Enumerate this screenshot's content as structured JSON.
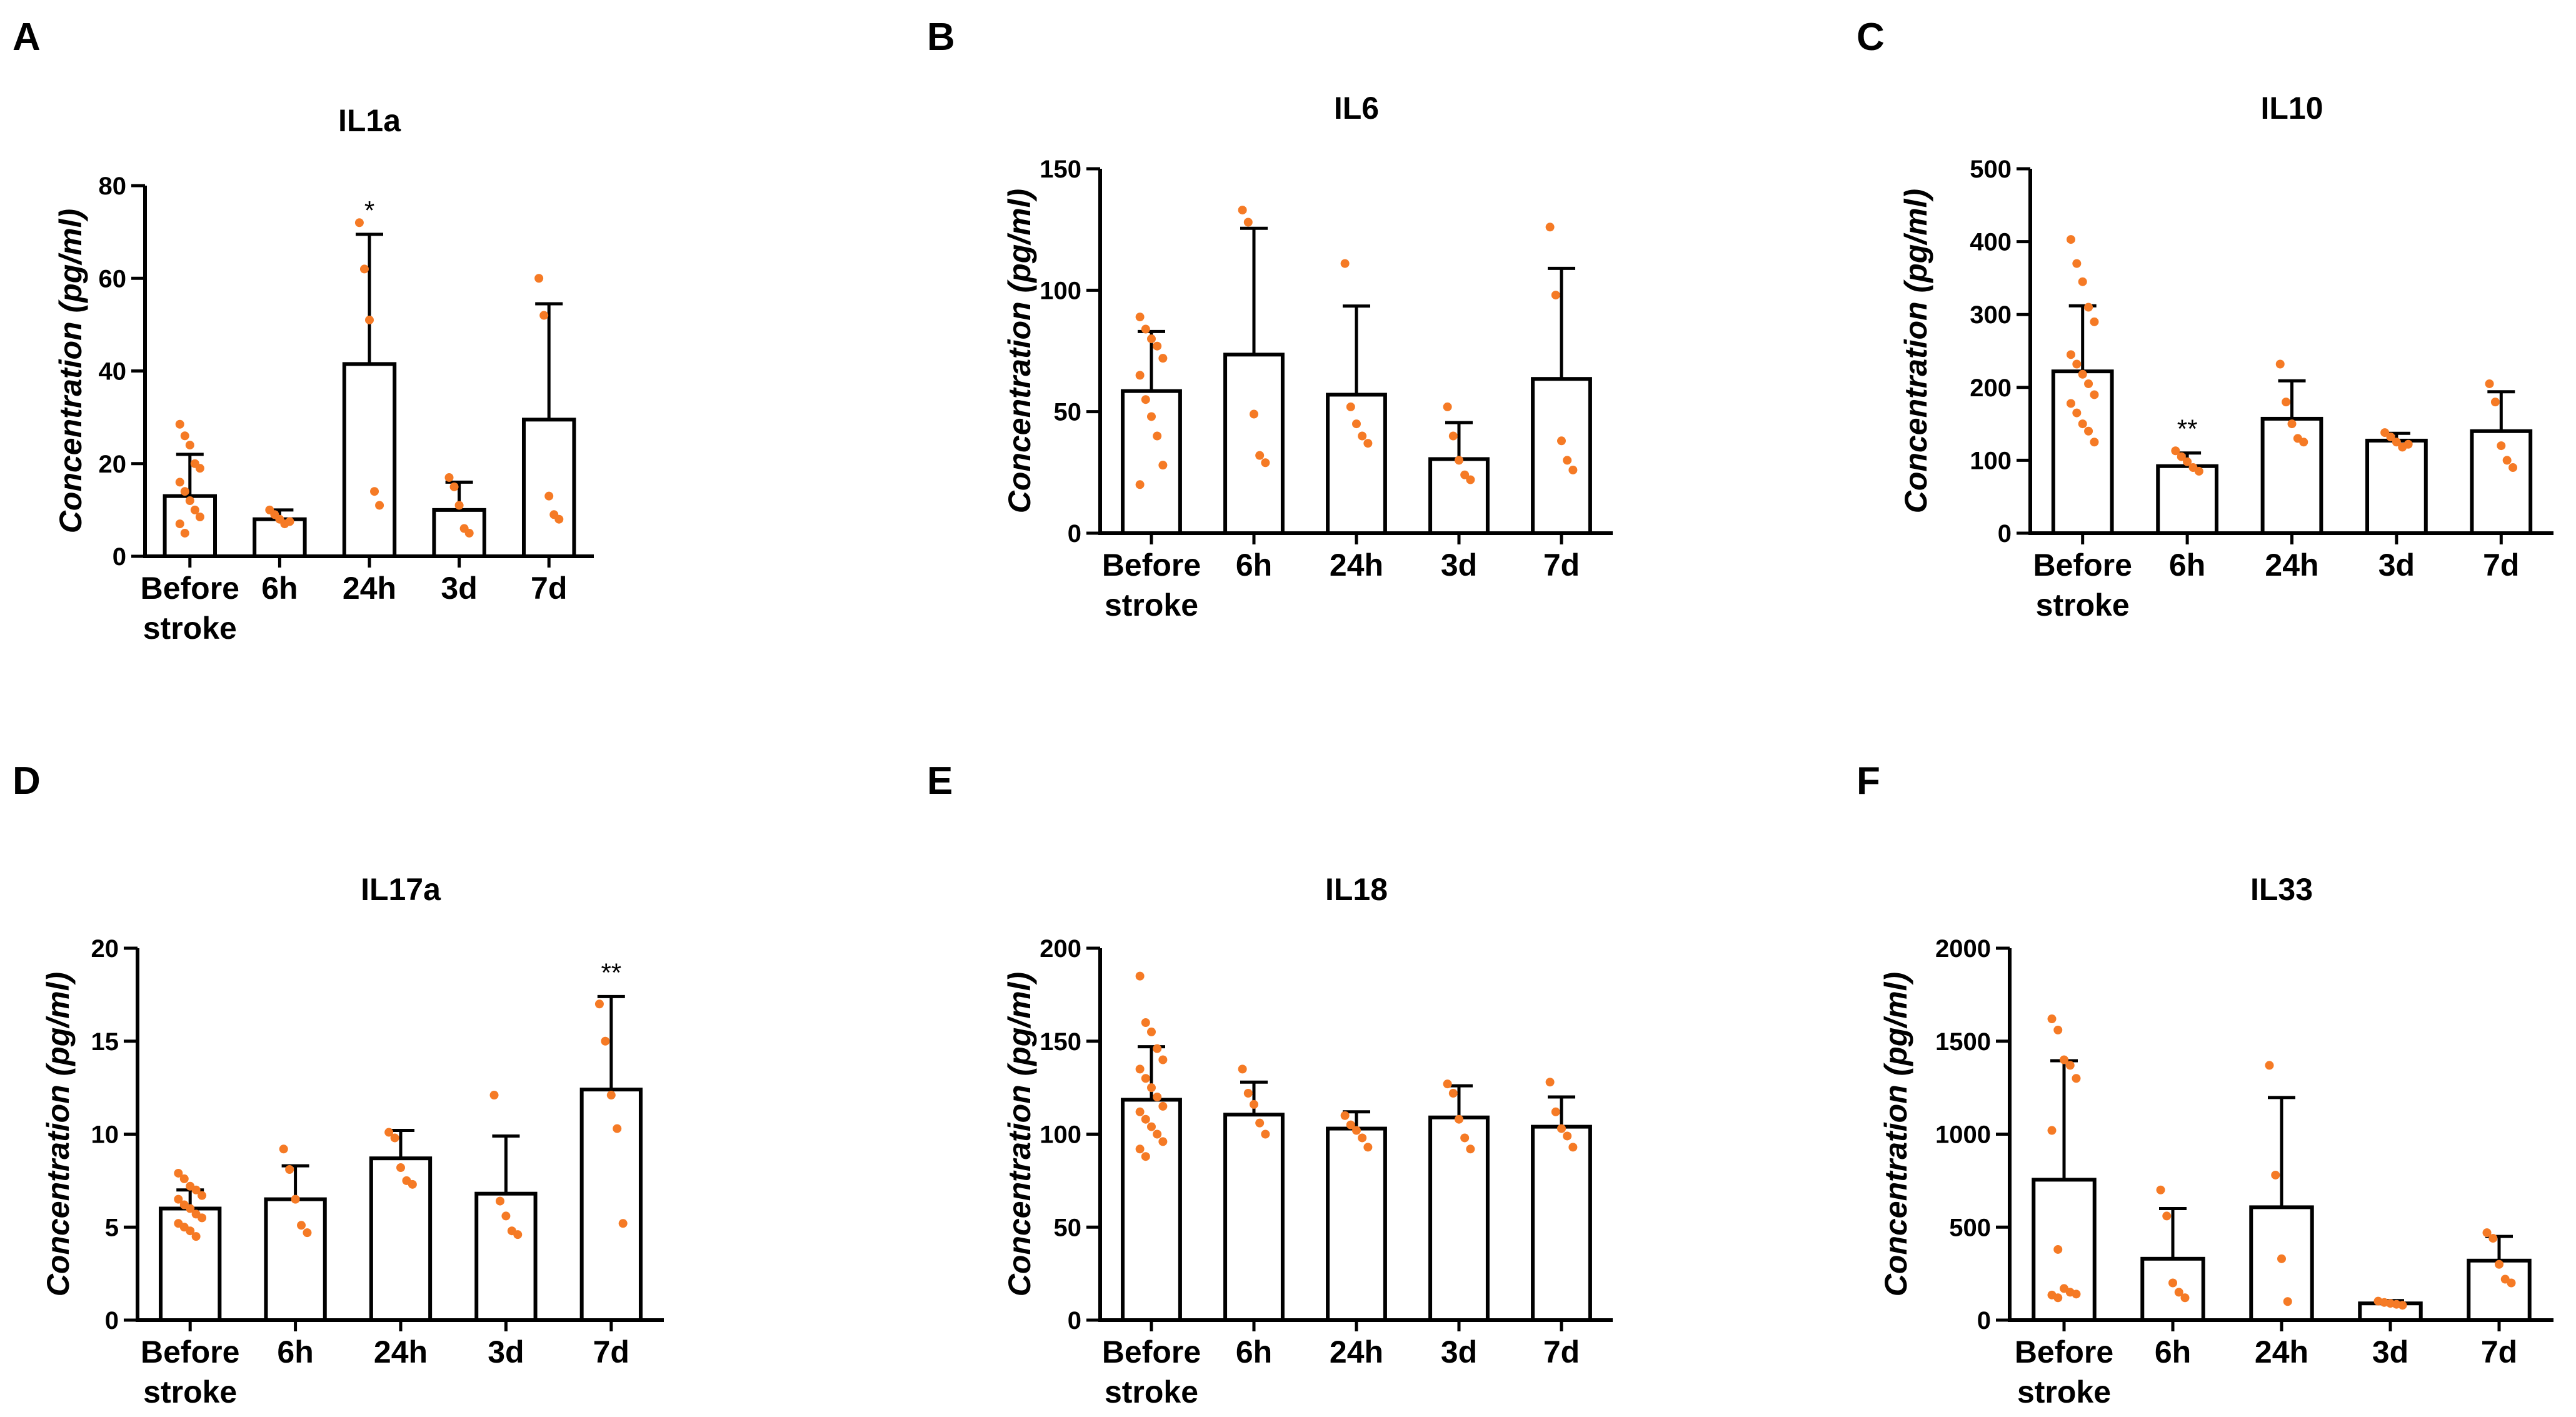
{
  "chart_data": [
    {
      "panel": "A",
      "type": "bar",
      "title": "IL1a",
      "ylabel": "Concentration (pg/ml)",
      "categories": [
        "Before\nstroke",
        "6h",
        "24h",
        "3d",
        "7d"
      ],
      "ylim": [
        0,
        80
      ],
      "yticks": [
        0,
        20,
        40,
        60,
        80
      ],
      "values": [
        13,
        8,
        41.5,
        10,
        29.5
      ],
      "errors": [
        9,
        2,
        28,
        6,
        25
      ],
      "significance": [
        "",
        "",
        "*",
        "",
        ""
      ],
      "points": [
        [
          28.5,
          26,
          24,
          20,
          19,
          16,
          14,
          12,
          10,
          8.5,
          7,
          5
        ],
        [
          10,
          9,
          8,
          7,
          7.5
        ],
        [
          72,
          62,
          51,
          14,
          11
        ],
        [
          17,
          15,
          11,
          6,
          5
        ],
        [
          60,
          52,
          13,
          9,
          8
        ]
      ]
    },
    {
      "panel": "B",
      "type": "bar",
      "title": "IL6",
      "ylabel": "Concentration (pg/ml)",
      "categories": [
        "Before\nstroke",
        "6h",
        "24h",
        "3d",
        "7d"
      ],
      "ylim": [
        0,
        150
      ],
      "yticks": [
        0,
        50,
        100,
        150
      ],
      "values": [
        58.5,
        73.5,
        57,
        30.5,
        63.5
      ],
      "errors": [
        24.5,
        52,
        36.5,
        15,
        45.5
      ],
      "significance": [
        "",
        "",
        "",
        "",
        ""
      ],
      "points": [
        [
          89,
          84,
          80,
          77,
          72,
          65,
          55,
          48,
          40,
          28,
          20
        ],
        [
          133,
          128,
          49,
          32,
          29
        ],
        [
          111,
          52,
          45,
          40,
          37
        ],
        [
          52,
          40,
          30,
          24,
          22
        ],
        [
          126,
          98,
          38,
          30,
          26
        ]
      ]
    },
    {
      "panel": "C",
      "type": "bar",
      "title": "IL10",
      "ylabel": "Concentration (pg/ml)",
      "categories": [
        "Before\nstroke",
        "6h",
        "24h",
        "3d",
        "7d"
      ],
      "ylim": [
        0,
        500
      ],
      "yticks": [
        0,
        100,
        200,
        300,
        400,
        500
      ],
      "values": [
        222,
        92,
        157,
        127,
        140
      ],
      "errors": [
        90,
        18,
        52,
        10,
        54
      ],
      "significance": [
        "",
        "**",
        "",
        "",
        ""
      ],
      "points": [
        [
          403,
          370,
          345,
          310,
          290,
          245,
          232,
          218,
          205,
          190,
          178,
          165,
          150,
          140,
          125
        ],
        [
          113,
          105,
          98,
          90,
          85
        ],
        [
          232,
          180,
          150,
          130,
          125
        ],
        [
          138,
          132,
          125,
          118,
          122
        ],
        [
          205,
          180,
          120,
          100,
          90
        ]
      ]
    },
    {
      "panel": "D",
      "type": "bar",
      "title": "IL17a",
      "ylabel": "Concentration (pg/ml)",
      "categories": [
        "Before\nstroke",
        "6h",
        "24h",
        "3d",
        "7d"
      ],
      "ylim": [
        0,
        20
      ],
      "yticks": [
        0,
        5,
        10,
        15,
        20
      ],
      "values": [
        6,
        6.5,
        8.7,
        6.8,
        12.4
      ],
      "errors": [
        1,
        1.8,
        1.5,
        3.1,
        5
      ],
      "significance": [
        "",
        "",
        "",
        "",
        "**"
      ],
      "points": [
        [
          7.9,
          7.6,
          7.2,
          7,
          6.7,
          6.5,
          6.2,
          6,
          5.7,
          5.5,
          5.2,
          5,
          4.8,
          4.5
        ],
        [
          9.2,
          8.1,
          6.5,
          5.1,
          4.7
        ],
        [
          10.1,
          9.8,
          8.2,
          7.5,
          7.3
        ],
        [
          12.1,
          6.4,
          5.6,
          4.8,
          4.6
        ],
        [
          17,
          15,
          12.1,
          10.3,
          5.2
        ]
      ]
    },
    {
      "panel": "E",
      "type": "bar",
      "title": "IL18",
      "ylabel": "Concentration (pg/ml)",
      "categories": [
        "Before\nstroke",
        "6h",
        "24h",
        "3d",
        "7d"
      ],
      "ylim": [
        0,
        200
      ],
      "yticks": [
        0,
        50,
        100,
        150,
        200
      ],
      "values": [
        118.5,
        110.5,
        103,
        109,
        104
      ],
      "errors": [
        28.5,
        17.5,
        9,
        17,
        16
      ],
      "significance": [
        "",
        "",
        "",
        "",
        ""
      ],
      "points": [
        [
          185,
          160,
          155,
          146,
          140,
          135,
          130,
          125,
          120,
          115,
          112,
          108,
          104,
          100,
          96,
          92,
          88
        ],
        [
          135,
          122,
          116,
          106,
          100
        ],
        [
          110,
          105,
          102,
          98,
          93
        ],
        [
          127,
          122,
          108,
          98,
          92
        ],
        [
          128,
          112,
          103,
          99,
          93
        ]
      ]
    },
    {
      "panel": "F",
      "type": "bar",
      "title": "IL33",
      "ylabel": "Concentration (pg/ml)",
      "categories": [
        "Before\nstroke",
        "6h",
        "24h",
        "3d",
        "7d"
      ],
      "ylim": [
        0,
        2000
      ],
      "yticks": [
        0,
        500,
        1000,
        1500,
        2000
      ],
      "values": [
        755,
        330,
        607,
        90,
        320
      ],
      "errors": [
        640,
        270,
        590,
        15,
        130
      ],
      "significance": [
        "",
        "",
        "",
        "",
        ""
      ],
      "points": [
        [
          1620,
          1560,
          1400,
          1370,
          1300,
          1020,
          380,
          170,
          150,
          140,
          135,
          120
        ],
        [
          700,
          560,
          200,
          150,
          120
        ],
        [
          1370,
          780,
          330,
          100
        ],
        [
          102,
          95,
          90,
          85,
          80
        ],
        [
          470,
          440,
          300,
          220,
          200
        ]
      ]
    }
  ]
}
